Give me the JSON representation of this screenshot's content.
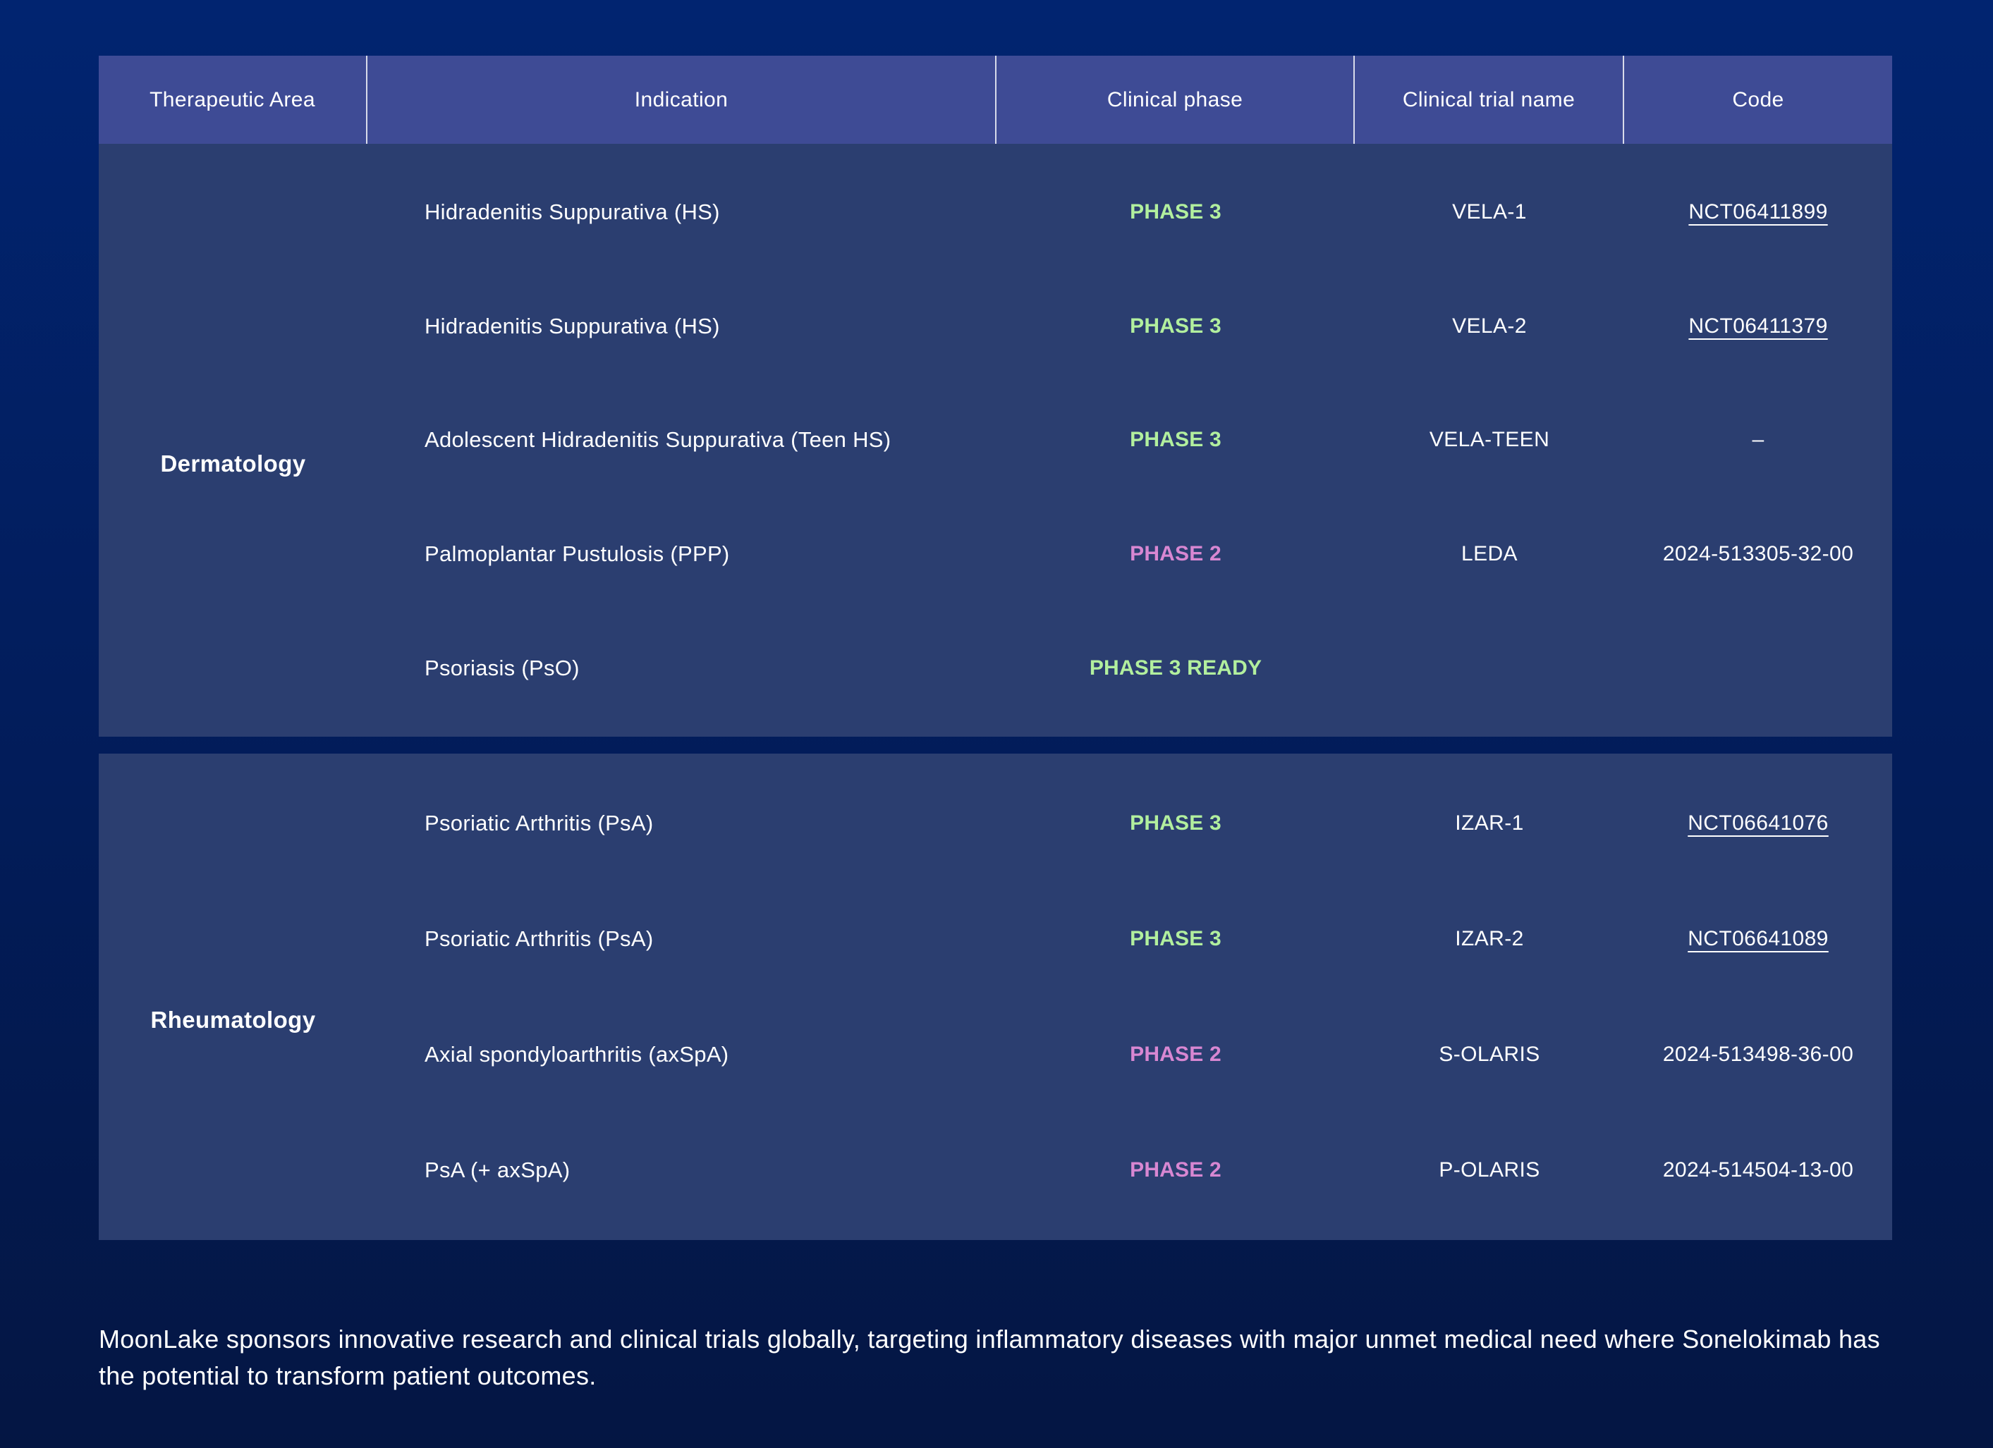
{
  "colors": {
    "page_top": "#012470",
    "page_mid": "#021c59",
    "page_bottom": "#041643",
    "header_bg": "#3e4b95",
    "section_bg": "#2b3e70",
    "phase_green": "#b2ef9e",
    "phase_pink": "#d887d2",
    "text": "#ffffff"
  },
  "table": {
    "headers": [
      {
        "id": "therapeutic-area",
        "label": "Therapeutic Area"
      },
      {
        "id": "indication",
        "label": "Indication"
      },
      {
        "id": "clinical-phase",
        "label": "Clinical phase"
      },
      {
        "id": "clinical-trial-name",
        "label": "Clinical trial name"
      },
      {
        "id": "code",
        "label": "Code"
      }
    ],
    "sections": [
      {
        "area": "Dermatology",
        "rows": [
          {
            "indication": "Hidradenitis Suppurativa (HS)",
            "phase": "PHASE 3",
            "phase_color": "green",
            "trial": "VELA-1",
            "code": "NCT06411899",
            "code_link": true
          },
          {
            "indication": "Hidradenitis Suppurativa (HS)",
            "phase": "PHASE 3",
            "phase_color": "green",
            "trial": "VELA-2",
            "code": "NCT06411379",
            "code_link": true
          },
          {
            "indication": "Adolescent Hidradenitis Suppurativa (Teen HS)",
            "phase": "PHASE 3",
            "phase_color": "green",
            "trial": "VELA-TEEN",
            "code": "–",
            "code_link": false
          },
          {
            "indication": "Palmoplantar Pustulosis (PPP)",
            "phase": "PHASE 2",
            "phase_color": "pink",
            "trial": "LEDA",
            "code": "2024-513305-32-00",
            "code_link": false
          },
          {
            "indication": "Psoriasis (PsO)",
            "phase": "PHASE 3 READY",
            "phase_color": "green",
            "trial": "",
            "code": "",
            "code_link": false
          }
        ]
      },
      {
        "area": "Rheumatology",
        "rows": [
          {
            "indication": "Psoriatic Arthritis (PsA)",
            "phase": "PHASE 3",
            "phase_color": "green",
            "trial": "IZAR-1",
            "code": "NCT06641076",
            "code_link": true
          },
          {
            "indication": "Psoriatic Arthritis (PsA)",
            "phase": "PHASE 3",
            "phase_color": "green",
            "trial": "IZAR-2",
            "code": "NCT06641089",
            "code_link": true
          },
          {
            "indication": "Axial spondyloarthritis (axSpA)",
            "phase": "PHASE 2",
            "phase_color": "pink",
            "trial": "S-OLARIS",
            "code": "2024-513498-36-00",
            "code_link": false
          },
          {
            "indication": "PsA (+ axSpA)",
            "phase": "PHASE 2",
            "phase_color": "pink",
            "trial": "P-OLARIS",
            "code": "2024-514504-13-00",
            "code_link": false
          }
        ]
      }
    ]
  },
  "footer": {
    "text": "MoonLake sponsors innovative research and clinical trials globally, targeting inflammatory diseases with major unmet medical need where Sonelokimab has the potential to transform patient outcomes."
  }
}
